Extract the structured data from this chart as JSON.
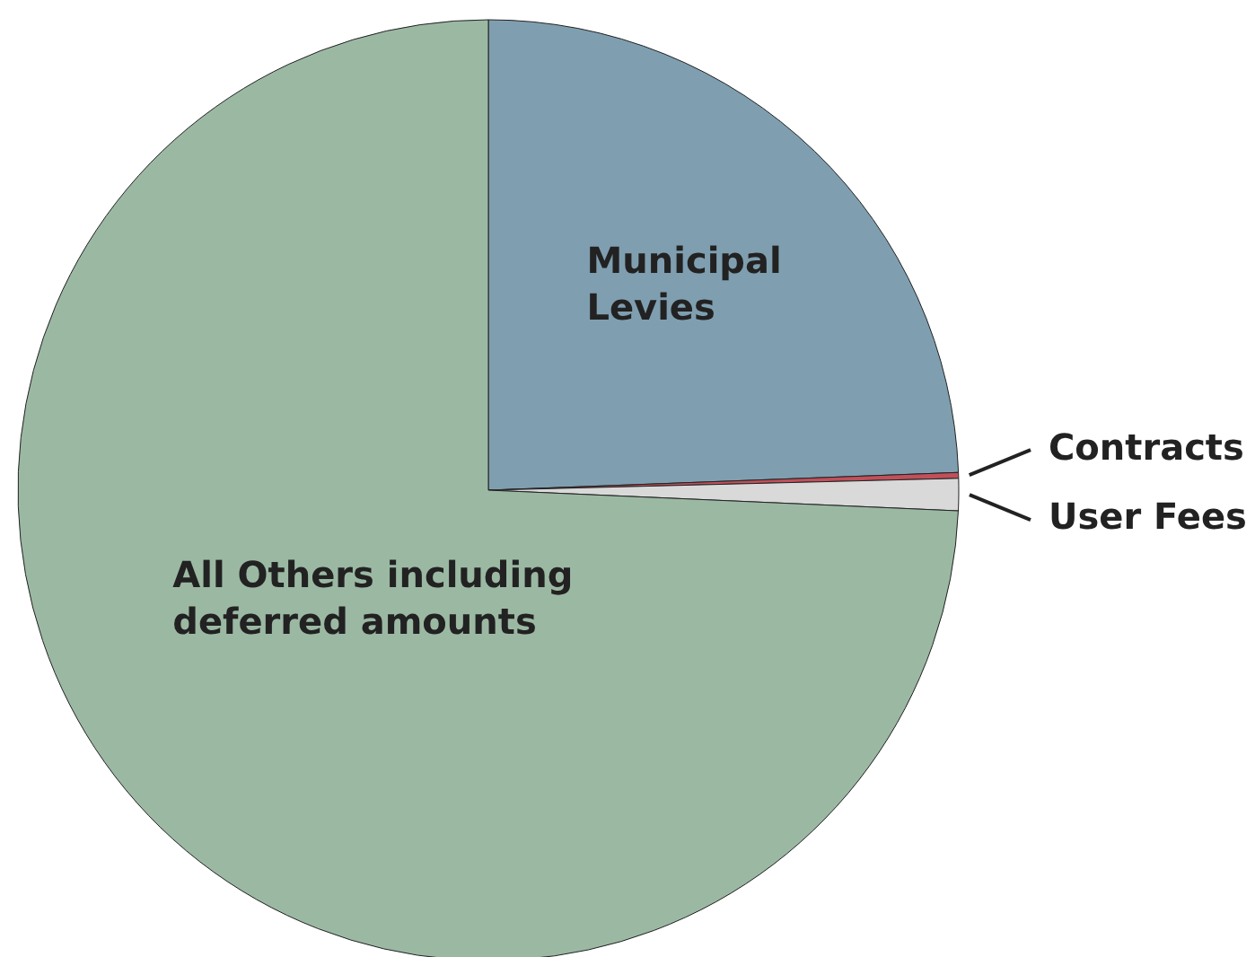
{
  "chart_data": {
    "type": "pie",
    "categories": [
      "Municipal Levies",
      "Contracts",
      "User Fees",
      "All Others including deferred amounts"
    ],
    "values": [
      24.4,
      0.2,
      1.1,
      74.3
    ],
    "colors": [
      "#7f9fb0",
      "#c0505a",
      "#d9d9d9",
      "#9bb8a3"
    ],
    "legend": false
  }
}
